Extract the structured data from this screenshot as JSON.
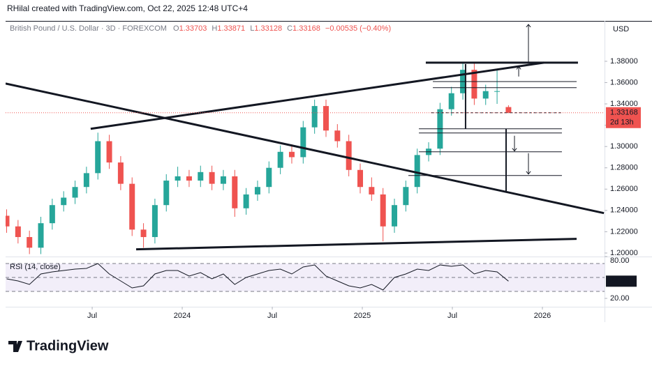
{
  "chart_data": {
    "type": "candlestick",
    "source": "RHilal created with TradingView.com, Oct 22, 2025 12:48 UTC+4",
    "title": "British Pound / U.S. Dollar · 3D · FOREXCOM",
    "ohlc_labels": [
      "O",
      "H",
      "L",
      "C"
    ],
    "change": "−0.00535 (−0.40%)",
    "currency": "USD",
    "countdown": "2d 13h",
    "logo": "TradingView",
    "up_color": "#26a69a",
    "down_color": "#ef5350",
    "x": [
      0.3,
      1.06,
      1.82,
      2.58,
      3.34,
      4.1,
      4.86,
      5.62,
      6.38,
      7.14,
      7.9,
      8.66,
      9.42,
      10.18,
      10.94,
      11.7,
      12.46,
      13.22,
      13.98,
      14.74,
      15.5,
      16.26,
      17.02,
      17.78,
      18.54,
      19.3,
      20.06,
      20.82,
      21.58,
      22.34,
      23.1,
      23.86,
      24.62,
      25.38,
      26.14,
      26.9,
      27.66,
      28.42,
      29.18,
      29.94,
      30.7,
      31.46,
      32.22,
      32.98,
      33.74
    ],
    "open": [
      1.235,
      1.225,
      1.215,
      1.205,
      1.228,
      1.245,
      1.252,
      1.262,
      1.275,
      1.305,
      1.285,
      1.265,
      1.222,
      1.215,
      1.245,
      1.268,
      1.272,
      1.268,
      1.276,
      1.265,
      1.272,
      1.242,
      1.255,
      1.262,
      1.28,
      1.295,
      1.29,
      1.318,
      1.338,
      1.315,
      1.305,
      1.278,
      1.262,
      1.255,
      1.225,
      1.245,
      1.262,
      1.292,
      1.298,
      1.335,
      1.35,
      1.372,
      1.345,
      1.352,
      1.33703
    ],
    "high": [
      1.241,
      1.231,
      1.221,
      1.234,
      1.251,
      1.258,
      1.268,
      1.281,
      1.313,
      1.311,
      1.291,
      1.271,
      1.228,
      1.251,
      1.274,
      1.281,
      1.278,
      1.282,
      1.282,
      1.278,
      1.278,
      1.261,
      1.268,
      1.286,
      1.301,
      1.302,
      1.324,
      1.344,
      1.344,
      1.321,
      1.311,
      1.284,
      1.271,
      1.261,
      1.251,
      1.268,
      1.298,
      1.304,
      1.341,
      1.356,
      1.379,
      1.378,
      1.358,
      1.372,
      1.33871
    ],
    "low": [
      1.219,
      1.209,
      1.199,
      1.199,
      1.222,
      1.239,
      1.246,
      1.256,
      1.269,
      1.279,
      1.259,
      1.216,
      1.205,
      1.209,
      1.239,
      1.262,
      1.262,
      1.262,
      1.259,
      1.259,
      1.234,
      1.236,
      1.249,
      1.256,
      1.274,
      1.284,
      1.284,
      1.312,
      1.309,
      1.299,
      1.272,
      1.256,
      1.249,
      1.211,
      1.219,
      1.239,
      1.256,
      1.286,
      1.292,
      1.329,
      1.344,
      1.339,
      1.339,
      1.34,
      1.33128
    ],
    "close": [
      1.225,
      1.215,
      1.205,
      1.228,
      1.245,
      1.252,
      1.262,
      1.275,
      1.305,
      1.285,
      1.265,
      1.222,
      1.215,
      1.245,
      1.268,
      1.272,
      1.268,
      1.276,
      1.265,
      1.272,
      1.242,
      1.255,
      1.262,
      1.28,
      1.295,
      1.29,
      1.318,
      1.338,
      1.315,
      1.305,
      1.278,
      1.262,
      1.255,
      1.225,
      1.245,
      1.262,
      1.292,
      1.298,
      1.335,
      1.35,
      1.372,
      1.345,
      1.352,
      1.352,
      1.33168
    ],
    "xlim": [
      0.23,
      40.14
    ],
    "xticks": [
      {
        "value": 6,
        "label": "Jul"
      },
      {
        "value": 12,
        "label": "2024"
      },
      {
        "value": 18,
        "label": "Jul"
      },
      {
        "value": 24,
        "label": "2025"
      },
      {
        "value": 30,
        "label": "Jul"
      },
      {
        "value": 36,
        "label": "2026"
      }
    ],
    "ylim": [
      1.1967,
      1.4179
    ],
    "yticks": [
      {
        "value": 1.2,
        "label": "1.20000"
      },
      {
        "value": 1.22,
        "label": "1.22000"
      },
      {
        "value": 1.24,
        "label": "1.24000"
      },
      {
        "value": 1.26,
        "label": "1.26000"
      },
      {
        "value": 1.28,
        "label": "1.28000"
      },
      {
        "value": 1.3,
        "label": "1.30000"
      },
      {
        "value": 1.32,
        "label": "1.32000"
      },
      {
        "value": 1.34,
        "label": "1.34000"
      },
      {
        "value": 1.36,
        "label": "1.36000"
      },
      {
        "value": 1.38,
        "label": "1.38000"
      }
    ],
    "trendlines": [
      {
        "x": [
          5.9,
          36.1
        ],
        "y": [
          1.3166,
          1.3787
        ]
      },
      {
        "x": [
          0.23,
          40.1
        ],
        "y": [
          1.3591,
          1.2375
        ]
      },
      {
        "x": [
          8.93,
          38.28
        ],
        "y": [
          1.2035,
          1.2133
        ]
      },
      {
        "x": [
          28.23,
          38.37
        ],
        "y": [
          1.3787,
          1.3787
        ]
      },
      {
        "x": [
          28.7,
          38.28
        ],
        "y": [
          1.361,
          1.361
        ]
      },
      {
        "x": [
          28.7,
          38.28
        ],
        "y": [
          1.3552,
          1.3552
        ]
      },
      {
        "x": [
          27.77,
          37.3
        ],
        "y": [
          1.3166,
          1.3166
        ]
      },
      {
        "x": [
          27.77,
          37.3
        ],
        "y": [
          1.3127,
          1.3127
        ]
      },
      {
        "x": [
          27.77,
          37.3
        ],
        "y": [
          1.295,
          1.295
        ]
      },
      {
        "x": [
          27.07,
          37.3
        ],
        "y": [
          1.2728,
          1.2728
        ]
      },
      {
        "x": [
          30.88,
          30.88
        ],
        "y": [
          1.3774,
          1.3166
        ]
      },
      {
        "x": [
          33.58,
          33.58
        ],
        "y": [
          1.3166,
          1.257
        ]
      }
    ],
    "arrows": [
      {
        "x": [
          35.07,
          35.07
        ],
        "y": [
          1.3787,
          1.4146
        ]
      },
      {
        "x": [
          34.42,
          34.42
        ],
        "y": [
          1.3657,
          1.375
        ]
      },
      {
        "x": [
          34.14,
          34.14
        ],
        "y": [
          1.3101,
          1.2958
        ]
      },
      {
        "x": [
          35.07,
          35.07
        ],
        "y": [
          1.2937,
          1.2741
        ]
      }
    ],
    "dashed_lines": [
      {
        "x": [
          28.6,
          37.3
        ],
        "y": [
          1.3317,
          1.3317
        ]
      }
    ],
    "rsi": {
      "name": "RSI (14, close)",
      "color": "#131722",
      "values": [
        48,
        45,
        40,
        55,
        58,
        60,
        62,
        63,
        70,
        55,
        45,
        35,
        38,
        55,
        60,
        60,
        52,
        57,
        48,
        55,
        40,
        50,
        55,
        60,
        62,
        55,
        65,
        68,
        52,
        45,
        38,
        35,
        40,
        32,
        50,
        55,
        62,
        60,
        68,
        66,
        68,
        55,
        60,
        58,
        44.68
      ],
      "ylim": [
        8,
        80
      ],
      "yticks": [
        {
          "value": 80,
          "label": "80.00"
        },
        {
          "value": 20,
          "label": "20.00"
        }
      ],
      "bands": [
        30,
        50,
        70
      ]
    }
  }
}
